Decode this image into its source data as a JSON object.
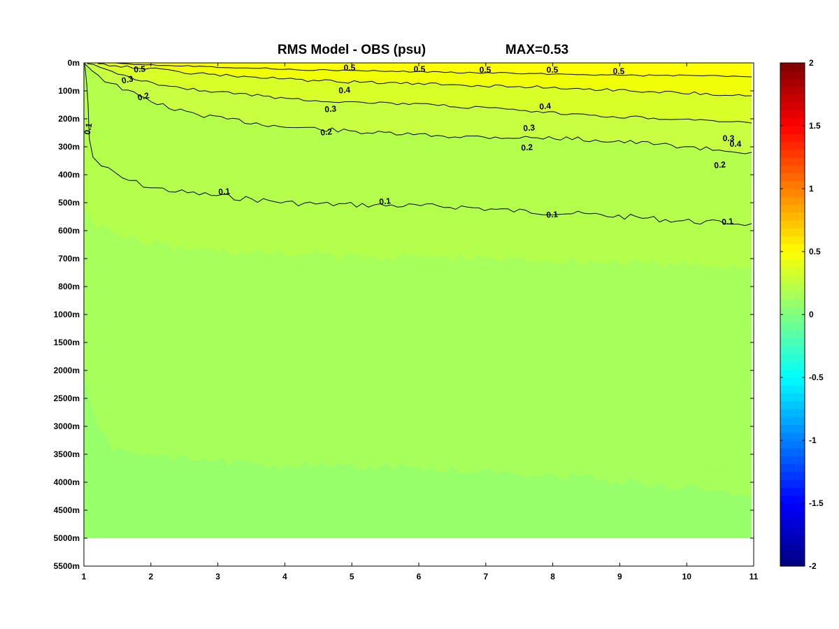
{
  "chart_data": {
    "type": "heatmap",
    "title": "RMS Model - OBS (psu)",
    "subtitle": "MAX=0.53",
    "xlabel": "",
    "ylabel": "",
    "x_ticks": [
      "1",
      "2",
      "3",
      "4",
      "5",
      "6",
      "7",
      "8",
      "9",
      "10",
      "11"
    ],
    "xlim": [
      1,
      11
    ],
    "y_ticks": [
      "0m",
      "100m",
      "200m",
      "300m",
      "400m",
      "500m",
      "600m",
      "700m",
      "800m",
      "1000m",
      "1500m",
      "2000m",
      "2500m",
      "3000m",
      "3500m",
      "4000m",
      "4500m",
      "5000m",
      "5500m"
    ],
    "data_extent": {
      "x": [
        1,
        11
      ],
      "y_tick_range": [
        "0m",
        "5000m"
      ]
    },
    "colorbar": {
      "ticks": [
        "2",
        "1.5",
        "1",
        "0.5",
        "0",
        "-0.5",
        "-1",
        "-1.5",
        "-2"
      ],
      "range": [
        -2,
        2
      ],
      "colormap": "jet",
      "levels": 64
    },
    "field_colors": {
      "gt_0.5": "#ffff00",
      "0.4_0.5": "#f0ff08",
      "0.3_0.4": "#d8ff28",
      "0.2_0.3": "#c8ff40",
      "0.1_0.2": "#b4ff4c",
      "0.03_0.1": "#a6ff5a",
      "lt_0.03": "#96ff6a"
    },
    "contour_levels": [
      0.1,
      0.2,
      0.3,
      0.4,
      0.5
    ],
    "contours": [
      {
        "level": 0.5,
        "labels": [
          "0.5",
          "0.5",
          "0.5",
          "0.5",
          "0.5",
          "0.5"
        ]
      },
      {
        "level": 0.4,
        "labels": [
          "0.4",
          "0.4",
          "0.4"
        ]
      },
      {
        "level": 0.3,
        "labels": [
          "0.3",
          "0.3",
          "0.3",
          "0.3"
        ]
      },
      {
        "level": 0.2,
        "labels": [
          "0.2",
          "0.2",
          "0.2",
          "0.2"
        ]
      },
      {
        "level": 0.1,
        "labels": [
          "0.1",
          "0.1",
          "0.1",
          "0.1",
          "0.1"
        ]
      }
    ]
  }
}
